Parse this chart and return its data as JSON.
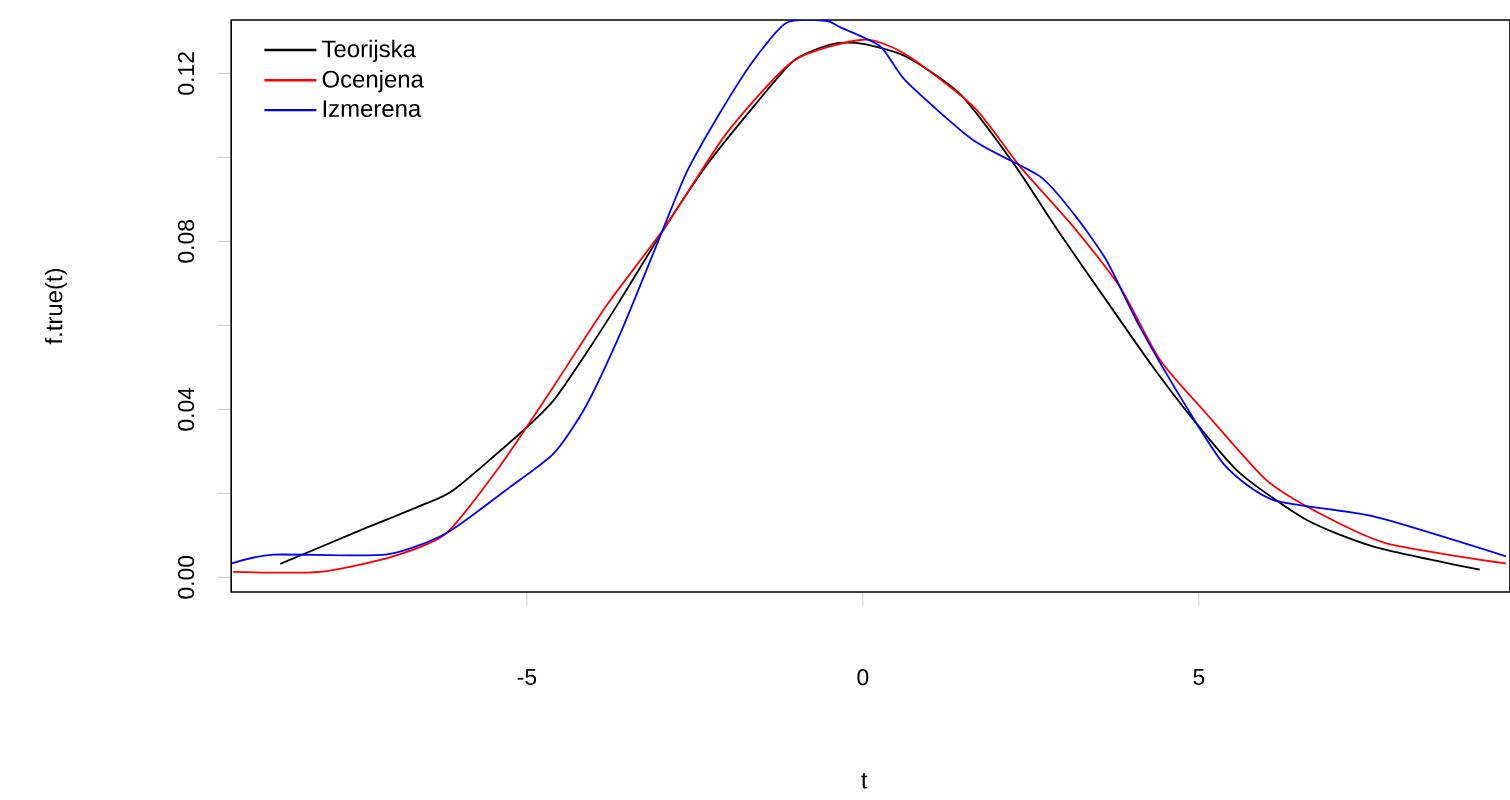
{
  "chart_data": {
    "type": "line",
    "xlabel": "t",
    "ylabel": "f.true(t)",
    "xlim": [
      -9.4,
      9.63
    ],
    "ylim": [
      -0.0035,
      0.1327
    ],
    "xticks": [
      -5,
      0,
      5
    ],
    "yticks": [
      {
        "value": 0,
        "label": "0.00"
      },
      {
        "value": 0.02,
        "label": null
      },
      {
        "value": 0.04,
        "label": "0.04"
      },
      {
        "value": 0.06,
        "label": null
      },
      {
        "value": 0.08,
        "label": "0.08"
      },
      {
        "value": 0.1,
        "label": null
      },
      {
        "value": 0.12,
        "label": "0.12"
      }
    ],
    "legend": "top left",
    "line_style": "solid",
    "series": [
      {
        "name": "Teorijska",
        "color": "#000000",
        "x": [
          -8.67,
          -7.58,
          -6.59,
          -6.09,
          -5.1,
          -4.6,
          -4.12,
          -3.61,
          -2.93,
          -2.33,
          -1.63,
          -1.03,
          -0.44,
          0,
          0.64,
          1.45,
          2.24,
          2.93,
          3.62,
          4.32,
          4.92,
          5.61,
          6.6,
          7.6,
          9.18
        ],
        "values": [
          0.0032,
          0.0105,
          0.017,
          0.0208,
          0.0343,
          0.0422,
          0.0533,
          0.066,
          0.0837,
          0.098,
          0.112,
          0.123,
          0.127,
          0.127,
          0.124,
          0.115,
          0.0986,
          0.0819,
          0.066,
          0.05,
          0.0375,
          0.0248,
          0.0137,
          0.0073,
          0.0018
        ]
      },
      {
        "name": "Ocenjena",
        "color": "#ff0000",
        "x": [
          -9.37,
          -8.08,
          -6.99,
          -6.2,
          -5.4,
          -4.6,
          -3.82,
          -2.93,
          -2.03,
          -1.03,
          0,
          0.64,
          1.65,
          2.34,
          3.13,
          3.83,
          4.42,
          5.11,
          6.0,
          6.8,
          7.79,
          9.57
        ],
        "values": [
          0.0013,
          0.0013,
          0.005,
          0.0105,
          0.0265,
          0.0455,
          0.0646,
          0.0837,
          0.1057,
          0.123,
          0.128,
          0.1245,
          0.112,
          0.0978,
          0.0835,
          0.069,
          0.0518,
          0.039,
          0.0232,
          0.0152,
          0.0081,
          0.0033
        ]
      },
      {
        "name": "Izmerena",
        "color": "#0000ff",
        "x": [
          -9.39,
          -8.77,
          -7.1,
          -6.2,
          -5.31,
          -4.6,
          -4.12,
          -3.61,
          -3.12,
          -2.63,
          -2.13,
          -1.63,
          -1.14,
          -0.55,
          -0.34,
          0.26,
          0.65,
          1.65,
          2.64,
          3.13,
          3.62,
          4.12,
          4.81,
          5.4,
          6.11,
          7.6,
          9.57
        ],
        "values": [
          0.0033,
          0.0054,
          0.0054,
          0.0105,
          0.0208,
          0.0295,
          0.0408,
          0.058,
          0.0771,
          0.0962,
          0.1105,
          0.123,
          0.132,
          0.1325,
          0.131,
          0.1264,
          0.118,
          0.104,
          0.0954,
          0.0867,
          0.0756,
          0.0597,
          0.0407,
          0.0264,
          0.0184,
          0.0145,
          0.005
        ]
      }
    ]
  }
}
